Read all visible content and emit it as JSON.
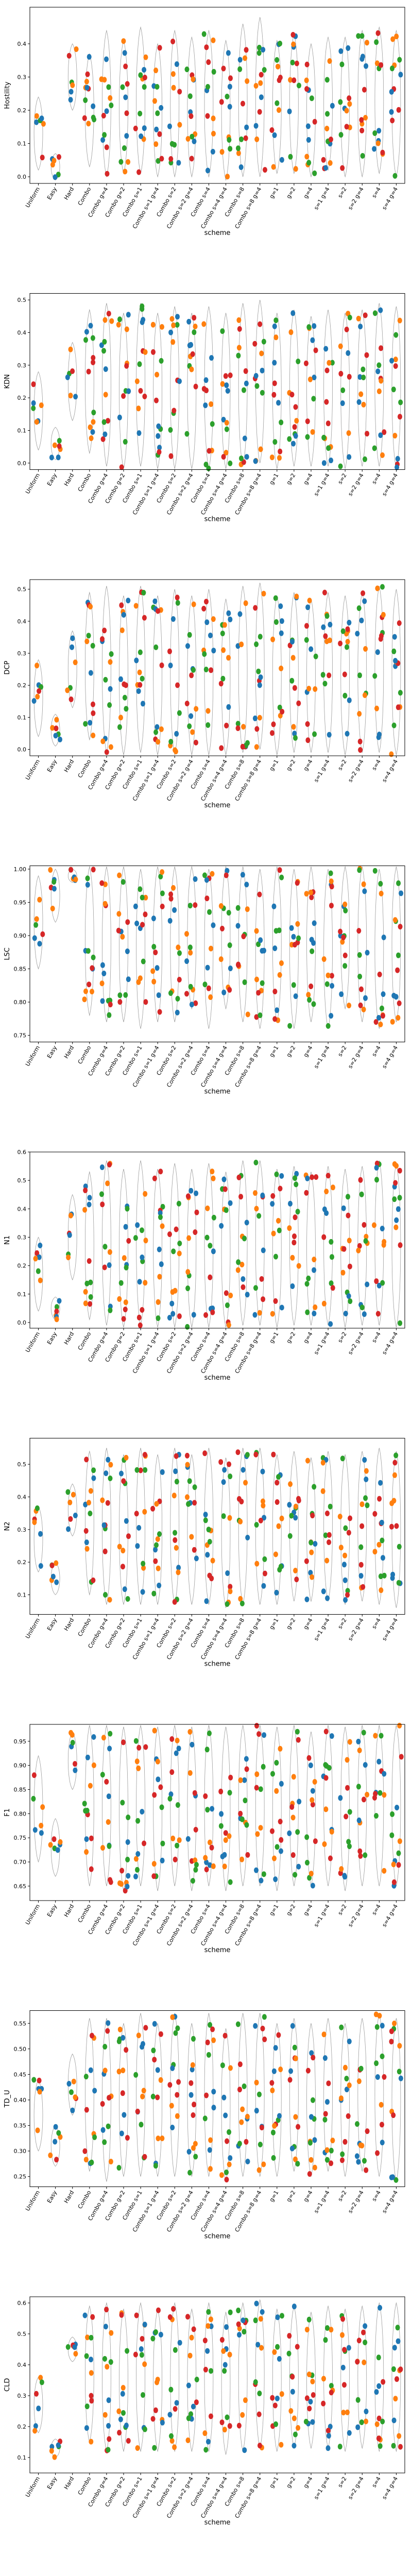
{
  "colors": {
    "series": [
      "#1f77b4",
      "#ff7f0e",
      "#2ca02c",
      "#d62728"
    ],
    "violin_edge": "#9a9a9a",
    "axes": "#000000"
  },
  "shared": {
    "xlabel": "scheme",
    "categories": [
      "Uniform",
      "Easy",
      "Hard",
      "Combo",
      "Combo g=4",
      "Combo g=2",
      "Combo s=1",
      "Combo s=1 g=4",
      "Combo s=2",
      "Combo s=2 g=4",
      "Combo s=4",
      "Combo s=4 g=4",
      "Combo s=8",
      "Combo s=8 g=4",
      "g=1",
      "g=2",
      "g=4",
      "s=1 g=4",
      "s=2",
      "s=2 g=4",
      "s=4",
      "s=4 g=4"
    ]
  },
  "chart_data": [
    {
      "type": "violin-strip",
      "ylabel": "Hostility",
      "xlabel": "scheme",
      "ylim": [
        -0.02,
        0.51
      ],
      "yticks": [
        0.0,
        0.1,
        0.2,
        0.3,
        0.4
      ],
      "ytick_labels": [
        "0.0",
        "0.1",
        "0.2",
        "0.3",
        "0.4"
      ],
      "base": [
        0.13,
        0.03,
        0.3,
        0.2,
        0.22,
        0.21,
        0.23,
        0.2,
        0.22,
        0.21,
        0.22,
        0.2,
        0.23,
        0.24,
        0.21,
        0.22,
        0.2,
        0.22,
        0.21,
        0.22,
        0.23,
        0.22
      ],
      "spread": [
        0.11,
        0.04,
        0.1,
        0.17,
        0.22,
        0.2,
        0.22,
        0.2,
        0.22,
        0.21,
        0.22,
        0.21,
        0.23,
        0.24,
        0.2,
        0.21,
        0.2,
        0.2,
        0.21,
        0.22,
        0.22,
        0.22
      ]
    },
    {
      "type": "violin-strip",
      "ylabel": "KDN",
      "xlabel": "scheme",
      "ylim": [
        -0.02,
        0.52
      ],
      "yticks": [
        0.0,
        0.1,
        0.2,
        0.3,
        0.4,
        0.5
      ],
      "ytick_labels": [
        "0.0",
        "0.1",
        "0.2",
        "0.3",
        "0.4",
        "0.5"
      ],
      "base": [
        0.16,
        0.06,
        0.25,
        0.25,
        0.24,
        0.22,
        0.24,
        0.22,
        0.23,
        0.22,
        0.23,
        0.22,
        0.24,
        0.25,
        0.22,
        0.23,
        0.22,
        0.23,
        0.22,
        0.23,
        0.24,
        0.23
      ],
      "spread": [
        0.12,
        0.05,
        0.12,
        0.22,
        0.25,
        0.24,
        0.25,
        0.24,
        0.25,
        0.24,
        0.25,
        0.24,
        0.25,
        0.25,
        0.24,
        0.24,
        0.23,
        0.24,
        0.24,
        0.24,
        0.25,
        0.25
      ]
    },
    {
      "type": "violin-strip",
      "ylabel": "DCP",
      "xlabel": "scheme",
      "ylim": [
        -0.02,
        0.53
      ],
      "yticks": [
        0.0,
        0.1,
        0.2,
        0.3,
        0.4,
        0.5
      ],
      "ytick_labels": [
        "0.0",
        "0.1",
        "0.2",
        "0.3",
        "0.4",
        "0.5"
      ],
      "base": [
        0.16,
        0.06,
        0.25,
        0.26,
        0.25,
        0.23,
        0.25,
        0.23,
        0.24,
        0.23,
        0.24,
        0.22,
        0.25,
        0.26,
        0.23,
        0.24,
        0.23,
        0.24,
        0.23,
        0.24,
        0.25,
        0.24
      ],
      "spread": [
        0.12,
        0.05,
        0.12,
        0.23,
        0.26,
        0.25,
        0.26,
        0.25,
        0.26,
        0.25,
        0.26,
        0.25,
        0.26,
        0.26,
        0.25,
        0.25,
        0.24,
        0.25,
        0.25,
        0.25,
        0.26,
        0.26
      ]
    },
    {
      "type": "violin-strip",
      "ylabel": "LSC",
      "xlabel": "scheme",
      "ylim": [
        0.74,
        1.005
      ],
      "yticks": [
        0.75,
        0.8,
        0.85,
        0.9,
        0.95,
        1.0
      ],
      "ytick_labels": [
        "0.75",
        "0.80",
        "0.85",
        "0.90",
        "0.95",
        "1.00"
      ],
      "base": [
        0.92,
        0.96,
        0.99,
        0.9,
        0.89,
        0.89,
        0.88,
        0.89,
        0.89,
        0.9,
        0.88,
        0.9,
        0.89,
        0.88,
        0.89,
        0.88,
        0.89,
        0.88,
        0.9,
        0.89,
        0.88,
        0.89
      ],
      "spread": [
        0.07,
        0.04,
        0.01,
        0.12,
        0.12,
        0.12,
        0.12,
        0.12,
        0.12,
        0.11,
        0.12,
        0.11,
        0.12,
        0.12,
        0.12,
        0.12,
        0.12,
        0.12,
        0.11,
        0.12,
        0.12,
        0.12
      ]
    },
    {
      "type": "violin-strip",
      "ylabel": "N1",
      "xlabel": "scheme",
      "ylim": [
        -0.02,
        0.6
      ],
      "yticks": [
        0.0,
        0.1,
        0.2,
        0.3,
        0.4,
        0.5,
        0.6
      ],
      "ytick_labels": [
        "0.0",
        "0.1",
        "0.2",
        "0.3",
        "0.4",
        "0.5",
        "0.6"
      ],
      "base": [
        0.17,
        0.05,
        0.3,
        0.27,
        0.28,
        0.26,
        0.28,
        0.26,
        0.27,
        0.26,
        0.27,
        0.25,
        0.28,
        0.28,
        0.26,
        0.27,
        0.26,
        0.27,
        0.26,
        0.27,
        0.28,
        0.27
      ],
      "spread": [
        0.13,
        0.04,
        0.15,
        0.26,
        0.29,
        0.28,
        0.29,
        0.28,
        0.29,
        0.28,
        0.29,
        0.28,
        0.29,
        0.29,
        0.28,
        0.28,
        0.27,
        0.28,
        0.28,
        0.28,
        0.29,
        0.29
      ]
    },
    {
      "type": "violin-strip",
      "ylabel": "N2",
      "xlabel": "scheme",
      "ylim": [
        0.04,
        0.58
      ],
      "yticks": [
        0.1,
        0.2,
        0.3,
        0.4,
        0.5
      ],
      "ytick_labels": [
        "0.1",
        "0.2",
        "0.3",
        "0.4",
        "0.5"
      ],
      "base": [
        0.27,
        0.15,
        0.36,
        0.32,
        0.31,
        0.3,
        0.31,
        0.3,
        0.31,
        0.3,
        0.31,
        0.29,
        0.31,
        0.31,
        0.3,
        0.31,
        0.3,
        0.31,
        0.3,
        0.31,
        0.31,
        0.3
      ],
      "spread": [
        0.1,
        0.05,
        0.08,
        0.22,
        0.24,
        0.23,
        0.24,
        0.23,
        0.24,
        0.23,
        0.24,
        0.23,
        0.24,
        0.24,
        0.23,
        0.23,
        0.22,
        0.23,
        0.23,
        0.23,
        0.24,
        0.24
      ]
    },
    {
      "type": "violin-strip",
      "ylabel": "F1",
      "xlabel": "scheme",
      "ylim": [
        0.62,
        0.985
      ],
      "yticks": [
        0.65,
        0.7,
        0.75,
        0.8,
        0.85,
        0.9,
        0.95
      ],
      "ytick_labels": [
        "0.65",
        "0.70",
        "0.75",
        "0.80",
        "0.85",
        "0.90",
        "0.95"
      ],
      "base": [
        0.81,
        0.73,
        0.91,
        0.82,
        0.82,
        0.81,
        0.82,
        0.81,
        0.82,
        0.81,
        0.82,
        0.81,
        0.82,
        0.82,
        0.81,
        0.82,
        0.81,
        0.82,
        0.81,
        0.82,
        0.82,
        0.82
      ],
      "spread": [
        0.11,
        0.06,
        0.06,
        0.17,
        0.17,
        0.17,
        0.17,
        0.17,
        0.17,
        0.17,
        0.17,
        0.17,
        0.17,
        0.17,
        0.17,
        0.17,
        0.16,
        0.17,
        0.17,
        0.17,
        0.17,
        0.17
      ]
    },
    {
      "type": "violin-strip",
      "ylabel": "TD_U",
      "xlabel": "scheme",
      "ylim": [
        0.23,
        0.575
      ],
      "yticks": [
        0.25,
        0.3,
        0.35,
        0.4,
        0.45,
        0.5,
        0.55
      ],
      "ytick_labels": [
        "0.25",
        "0.30",
        "0.35",
        "0.40",
        "0.45",
        "0.50",
        "0.55"
      ],
      "base": [
        0.37,
        0.31,
        0.43,
        0.41,
        0.4,
        0.4,
        0.41,
        0.4,
        0.41,
        0.4,
        0.41,
        0.39,
        0.41,
        0.41,
        0.4,
        0.41,
        0.4,
        0.41,
        0.4,
        0.41,
        0.41,
        0.4
      ],
      "spread": [
        0.07,
        0.04,
        0.06,
        0.15,
        0.16,
        0.15,
        0.16,
        0.15,
        0.16,
        0.15,
        0.16,
        0.15,
        0.16,
        0.16,
        0.15,
        0.15,
        0.15,
        0.15,
        0.15,
        0.15,
        0.16,
        0.16
      ]
    },
    {
      "type": "violin-strip",
      "ylabel": "CLD",
      "xlabel": "scheme",
      "ylim": [
        0.05,
        0.62
      ],
      "yticks": [
        0.1,
        0.2,
        0.3,
        0.4,
        0.5,
        0.6
      ],
      "ytick_labels": [
        "0.1",
        "0.2",
        "0.3",
        "0.4",
        "0.5",
        "0.6"
      ],
      "base": [
        0.27,
        0.13,
        0.45,
        0.37,
        0.36,
        0.35,
        0.36,
        0.35,
        0.36,
        0.35,
        0.36,
        0.34,
        0.36,
        0.37,
        0.35,
        0.36,
        0.35,
        0.36,
        0.35,
        0.36,
        0.36,
        0.36
      ],
      "spread": [
        0.09,
        0.03,
        0.04,
        0.22,
        0.24,
        0.23,
        0.24,
        0.23,
        0.24,
        0.23,
        0.24,
        0.23,
        0.24,
        0.24,
        0.23,
        0.23,
        0.22,
        0.23,
        0.23,
        0.23,
        0.24,
        0.24
      ]
    }
  ]
}
